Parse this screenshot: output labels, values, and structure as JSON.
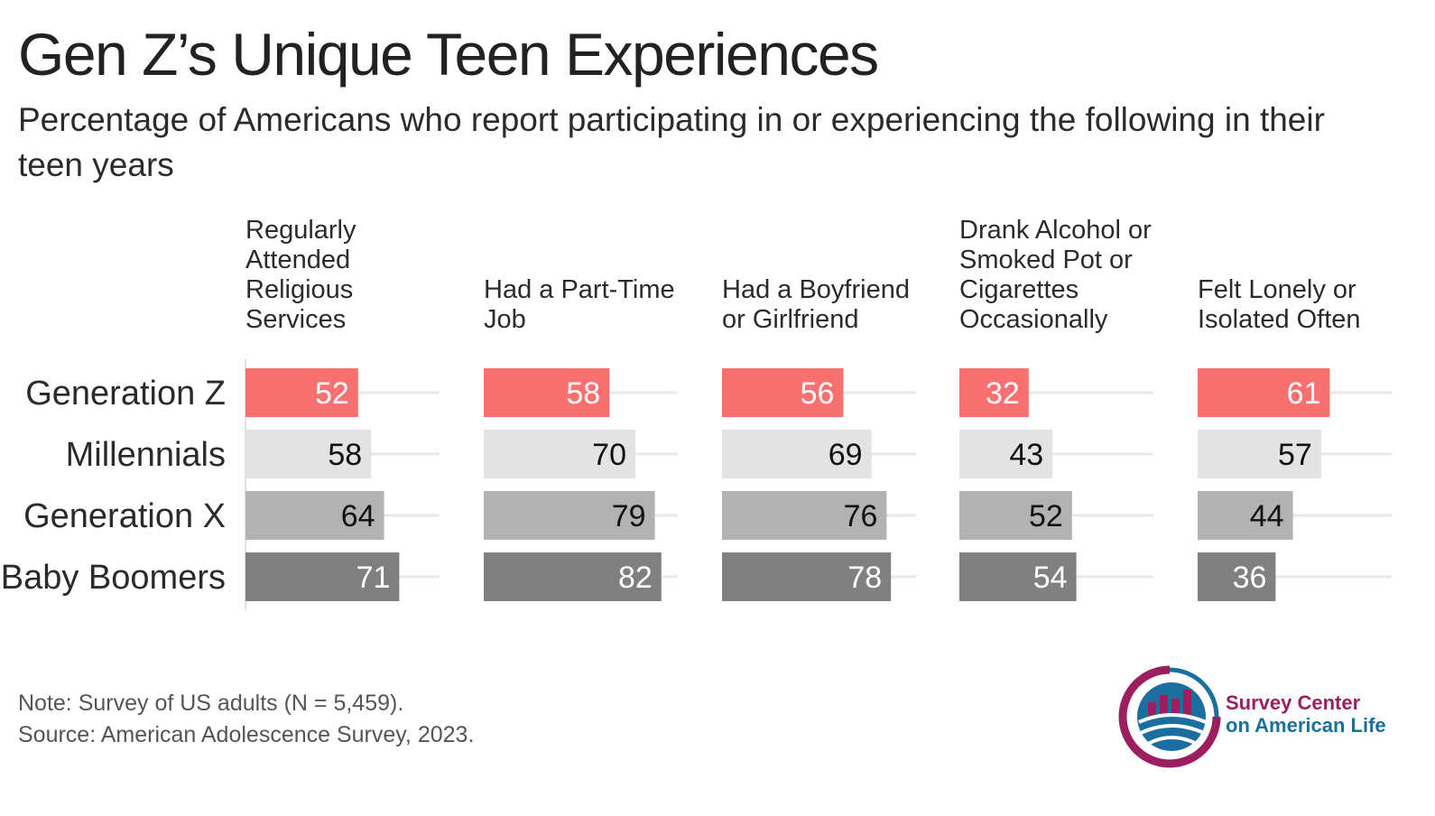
{
  "title": "Gen Z’s Unique Teen Experiences",
  "subtitle": "Percentage of Americans who report participating in or experiencing the following in their teen years",
  "note": "Note: Survey of US adults (N = 5,459).",
  "source": "Source: American Adolescence Survey, 2023.",
  "logo": {
    "line1": "Survey Center",
    "line2": "on American Life"
  },
  "colors": {
    "Generation Z": "#f97070",
    "Millennials": "#e3e3e3",
    "Generation X": "#b2b2b2",
    "Baby Boomers": "#808080",
    "gridline": "#e8e8e8",
    "logo_purple": "#9b1e5f",
    "logo_blue": "#1b6f9e"
  },
  "chart_data": {
    "type": "bar",
    "orientation": "horizontal",
    "faceted": true,
    "title": "Gen Z’s Unique Teen Experiences",
    "ylabel": "",
    "xlabel": "",
    "xlim": [
      0,
      100
    ],
    "categories": [
      "Generation Z",
      "Millennials",
      "Generation X",
      "Baby Boomers"
    ],
    "panels": [
      {
        "title_lines": [
          "Regularly",
          "Attended",
          "Religious",
          "Services"
        ],
        "values": [
          52,
          58,
          64,
          71
        ]
      },
      {
        "title_lines": [
          "Had a Part-Time",
          "Job"
        ],
        "values": [
          58,
          70,
          79,
          82
        ]
      },
      {
        "title_lines": [
          "Had a Boyfriend",
          "or Girlfriend"
        ],
        "values": [
          56,
          69,
          76,
          78
        ]
      },
      {
        "title_lines": [
          "Drank Alcohol or",
          "Smoked Pot or",
          "Cigarettes",
          "Occasionally"
        ],
        "values": [
          32,
          43,
          52,
          54
        ]
      },
      {
        "title_lines": [
          "Felt Lonely or",
          "Isolated Often"
        ],
        "values": [
          61,
          57,
          44,
          36
        ]
      }
    ],
    "label_colors": {
      "Generation Z": "#ffffff",
      "Millennials": "#111111",
      "Generation X": "#111111",
      "Baby Boomers": "#ffffff"
    }
  }
}
